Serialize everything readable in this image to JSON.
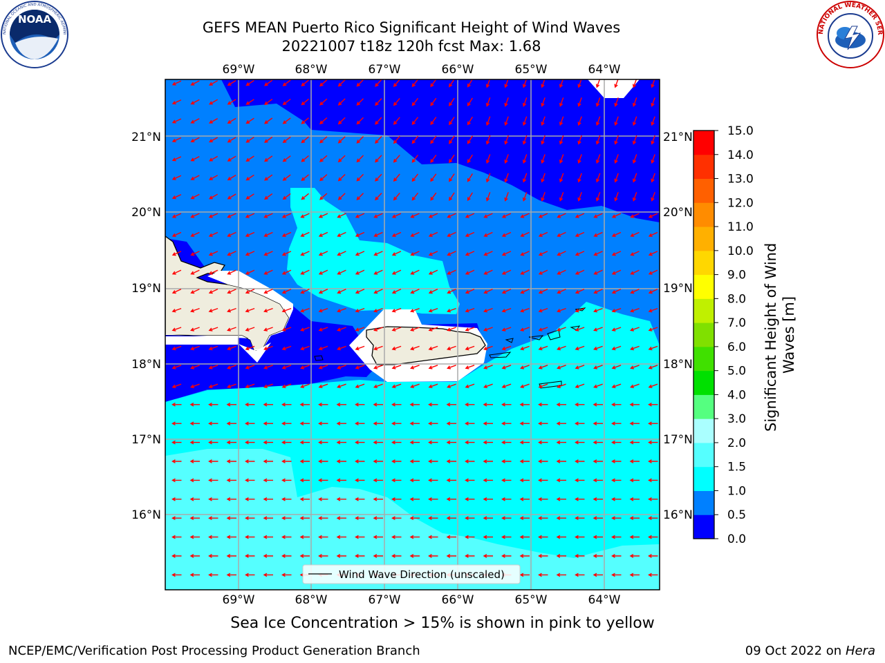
{
  "title": {
    "line1": "GEFS MEAN Puerto Rico Significant Height of Wind Waves",
    "line2": "20221007 t18z 120h fcst   Max: 1.68"
  },
  "logos": {
    "left": "NOAA",
    "left_ring_text": "NATIONAL OCEANIC AND ATMOSPHERIC ADMINISTRATION · U.S. DEPARTMENT OF COMMERCE",
    "right_ring_text": "NATIONAL WEATHER SERVICE"
  },
  "map": {
    "lon_labels": [
      "69°W",
      "68°W",
      "67°W",
      "66°W",
      "65°W",
      "64°W"
    ],
    "lat_labels": [
      "21°N",
      "20°N",
      "19°N",
      "18°N",
      "17°N",
      "16°N"
    ],
    "legend_label": "Wind Wave Direction (unscaled)",
    "ice_note": "Sea Ice Concentration > 15% is shown in pink to yellow",
    "colors": {
      "land": "#efedde",
      "arrow": "#ff0000",
      "level_0": "#0000ff",
      "level_05": "#0080ff",
      "level_1": "#00ffff",
      "level_15": "#55ffff"
    }
  },
  "colorbar": {
    "label": "Significant Height of Wind Waves [m]",
    "ticks": [
      "0.0",
      "0.5",
      "1.0",
      "1.5",
      "2.0",
      "3.0",
      "4.0",
      "5.0",
      "6.0",
      "7.0",
      "8.0",
      "9.0",
      "10.0",
      "11.0",
      "12.0",
      "13.0",
      "14.0",
      "15.0"
    ],
    "colors": [
      "#0000ff",
      "#0080ff",
      "#00ffff",
      "#55ffff",
      "#aaffff",
      "#55ff80",
      "#00e000",
      "#40e000",
      "#80e000",
      "#c0f000",
      "#ffff00",
      "#ffd700",
      "#ffb000",
      "#ff8c00",
      "#ff6000",
      "#ff3000",
      "#ff0000"
    ]
  },
  "footer": {
    "left": "NCEP/EMC/Verification Post Processing Product Generation Branch",
    "right_prefix": "09 Oct 2022 on ",
    "right_host": "Hera"
  }
}
